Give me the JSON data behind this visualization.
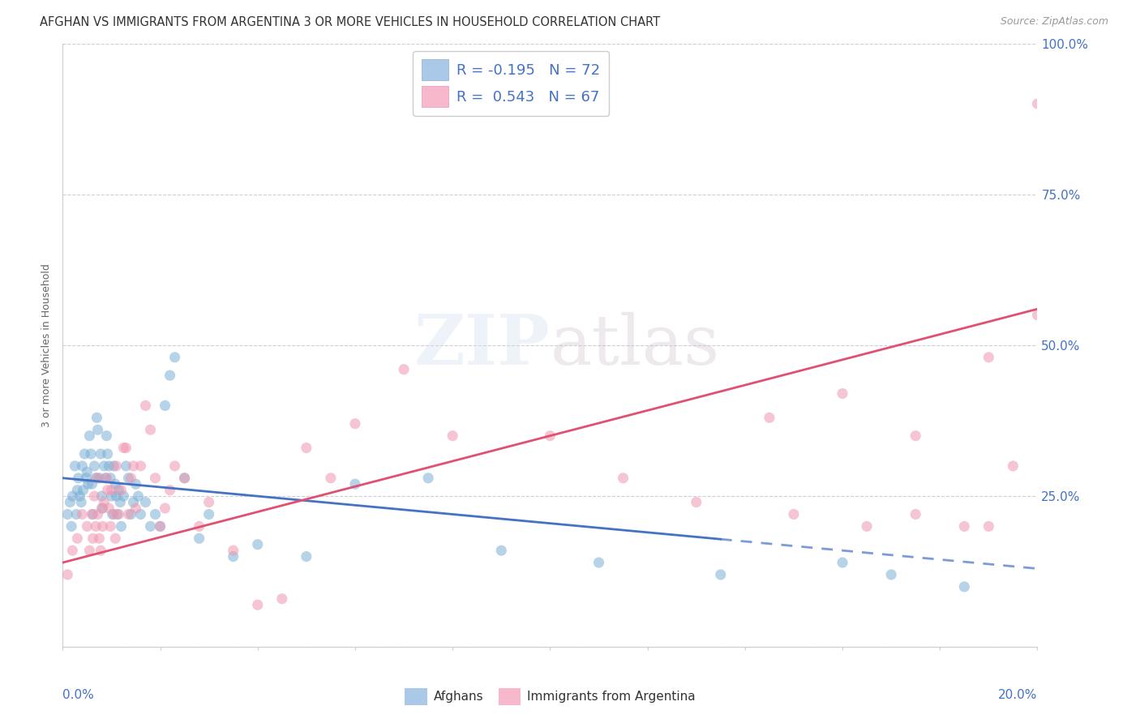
{
  "title": "AFGHAN VS IMMIGRANTS FROM ARGENTINA 3 OR MORE VEHICLES IN HOUSEHOLD CORRELATION CHART",
  "source": "Source: ZipAtlas.com",
  "ylabel": "3 or more Vehicles in Household",
  "xlim": [
    0.0,
    20.0
  ],
  "ylim": [
    0.0,
    100.0
  ],
  "yticks": [
    0,
    25,
    50,
    75,
    100
  ],
  "ytick_labels_right": [
    "",
    "25.0%",
    "50.0%",
    "75.0%",
    "100.0%"
  ],
  "watermark": "ZIPatlas",
  "blue_color": "#7bafd4",
  "pink_color": "#f096b0",
  "blue_line_color": "#4472c4",
  "pink_line_color": "#e05070",
  "background_color": "#ffffff",
  "grid_color": "#c8c8d8",
  "afghans_x": [
    0.1,
    0.15,
    0.18,
    0.2,
    0.25,
    0.28,
    0.3,
    0.32,
    0.35,
    0.38,
    0.4,
    0.42,
    0.45,
    0.48,
    0.5,
    0.52,
    0.55,
    0.58,
    0.6,
    0.62,
    0.65,
    0.68,
    0.7,
    0.72,
    0.75,
    0.78,
    0.8,
    0.82,
    0.85,
    0.88,
    0.9,
    0.92,
    0.95,
    0.98,
    1.0,
    1.02,
    1.05,
    1.08,
    1.1,
    1.12,
    1.15,
    1.18,
    1.2,
    1.25,
    1.3,
    1.35,
    1.4,
    1.45,
    1.5,
    1.55,
    1.6,
    1.7,
    1.8,
    1.9,
    2.0,
    2.1,
    2.2,
    2.3,
    2.5,
    2.8,
    3.0,
    3.5,
    4.0,
    5.0,
    6.0,
    7.5,
    9.0,
    11.0,
    13.5,
    16.0,
    17.0,
    18.5
  ],
  "afghans_y": [
    22,
    24,
    20,
    25,
    30,
    22,
    26,
    28,
    25,
    24,
    30,
    26,
    32,
    28,
    29,
    27,
    35,
    32,
    27,
    22,
    30,
    28,
    38,
    36,
    28,
    32,
    25,
    23,
    30,
    28,
    35,
    32,
    30,
    28,
    25,
    22,
    30,
    27,
    25,
    22,
    26,
    24,
    20,
    25,
    30,
    28,
    22,
    24,
    27,
    25,
    22,
    24,
    20,
    22,
    20,
    40,
    45,
    48,
    28,
    18,
    22,
    15,
    17,
    15,
    27,
    28,
    16,
    14,
    12,
    14,
    12,
    10
  ],
  "argentina_x": [
    0.1,
    0.2,
    0.3,
    0.4,
    0.5,
    0.55,
    0.6,
    0.62,
    0.65,
    0.68,
    0.7,
    0.72,
    0.75,
    0.78,
    0.8,
    0.82,
    0.85,
    0.9,
    0.92,
    0.95,
    0.98,
    1.0,
    1.05,
    1.08,
    1.1,
    1.15,
    1.2,
    1.25,
    1.3,
    1.35,
    1.4,
    1.45,
    1.5,
    1.6,
    1.7,
    1.8,
    1.9,
    2.0,
    2.1,
    2.2,
    2.3,
    2.5,
    2.8,
    3.0,
    3.5,
    4.0,
    4.5,
    5.0,
    5.5,
    6.0,
    7.0,
    8.0,
    10.0,
    11.5,
    13.0,
    15.0,
    16.5,
    17.5,
    18.5,
    19.0,
    19.5,
    20.0,
    20.0,
    19.0,
    17.5,
    16.0,
    14.5
  ],
  "argentina_y": [
    12,
    16,
    18,
    22,
    20,
    16,
    22,
    18,
    25,
    20,
    28,
    22,
    18,
    16,
    23,
    20,
    24,
    28,
    26,
    23,
    20,
    26,
    22,
    18,
    30,
    22,
    26,
    33,
    33,
    22,
    28,
    30,
    23,
    30,
    40,
    36,
    28,
    20,
    23,
    26,
    30,
    28,
    20,
    24,
    16,
    7,
    8,
    33,
    28,
    37,
    46,
    35,
    35,
    28,
    24,
    22,
    20,
    22,
    20,
    20,
    30,
    55,
    90,
    48,
    35,
    42,
    38
  ],
  "afghan_R": -0.195,
  "afghan_N": 72,
  "argentina_R": 0.543,
  "argentina_N": 67,
  "afghan_line_x0": 0.0,
  "afghan_line_y0": 28.0,
  "afghan_line_x1": 20.0,
  "afghan_line_y1": 13.0,
  "afghan_solid_end": 13.5,
  "argentina_line_x0": 0.0,
  "argentina_line_y0": 14.0,
  "argentina_line_x1": 20.0,
  "argentina_line_y1": 56.0
}
